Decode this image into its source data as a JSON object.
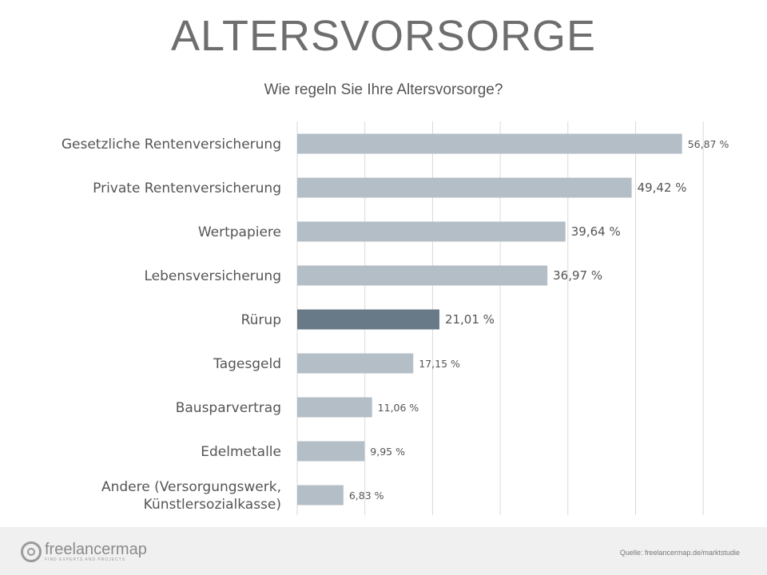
{
  "header": {
    "title": "ALTERSVORSORGE"
  },
  "chart_data": {
    "type": "bar",
    "orientation": "horizontal",
    "title": "Wie regeln Sie Ihre Altersvorsorge?",
    "categories": [
      [
        "Gesetzliche Rentenversicherung"
      ],
      [
        "Private Rentenversicherung"
      ],
      [
        "Wertpapiere"
      ],
      [
        "Lebensversicherung"
      ],
      [
        "Rürup"
      ],
      [
        "Tagesgeld"
      ],
      [
        "Bausparvertrag"
      ],
      [
        "Edelmetalle"
      ],
      [
        "Andere (Versorgungswerk,",
        "Künstlersozialkasse)"
      ]
    ],
    "values": [
      56.87,
      49.42,
      39.64,
      36.97,
      21.01,
      17.15,
      11.06,
      9.95,
      6.83
    ],
    "value_labels": [
      "56,87 %",
      "49,42 %",
      "39,64 %",
      "36,97 %",
      "21,01 %",
      "17,15 %",
      "11,06 %",
      "9,95 %",
      "6,83 %"
    ],
    "highlight_index": 4,
    "xlim": [
      0,
      60
    ],
    "grid": true,
    "xlabel": "",
    "ylabel": "",
    "colors": {
      "bar": "#b4bec6",
      "highlight": "#687a88",
      "grid": "#d9d9d9"
    }
  },
  "footer": {
    "logo_text": "freelancermap",
    "logo_tagline": "FIND EXPERTS AND PROJECTS",
    "source": "Quelle: freelancermap.de/marktstudie"
  }
}
